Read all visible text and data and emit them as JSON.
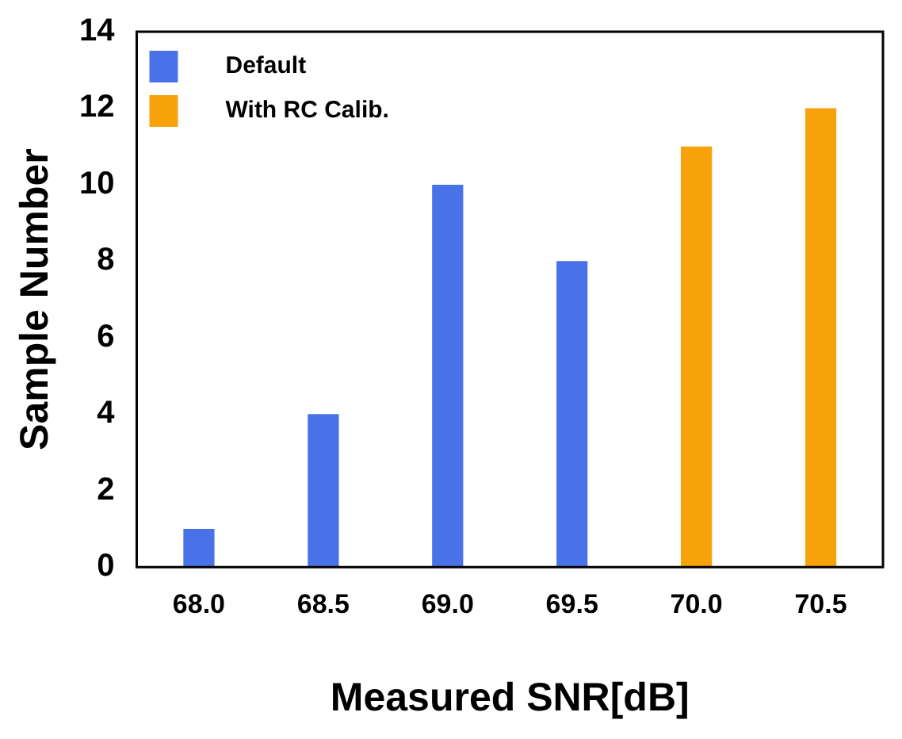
{
  "chart_data": {
    "type": "bar",
    "xlabel": "Measured SNR[dB]",
    "ylabel": "Sample Number",
    "categories": [
      "68.0",
      "68.5",
      "69.0",
      "69.5",
      "70.0",
      "70.5"
    ],
    "series": [
      {
        "name": "Default",
        "color": "#4a72e8",
        "values": [
          1,
          4,
          10,
          8,
          null,
          null
        ]
      },
      {
        "name": "With RC Calib.",
        "color": "#f7a20a",
        "values": [
          null,
          null,
          null,
          null,
          11,
          12
        ]
      }
    ],
    "ylim": [
      0,
      14
    ],
    "yticks": [
      0,
      2,
      4,
      6,
      8,
      10,
      12,
      14
    ],
    "grid": false,
    "legend": "top left"
  }
}
